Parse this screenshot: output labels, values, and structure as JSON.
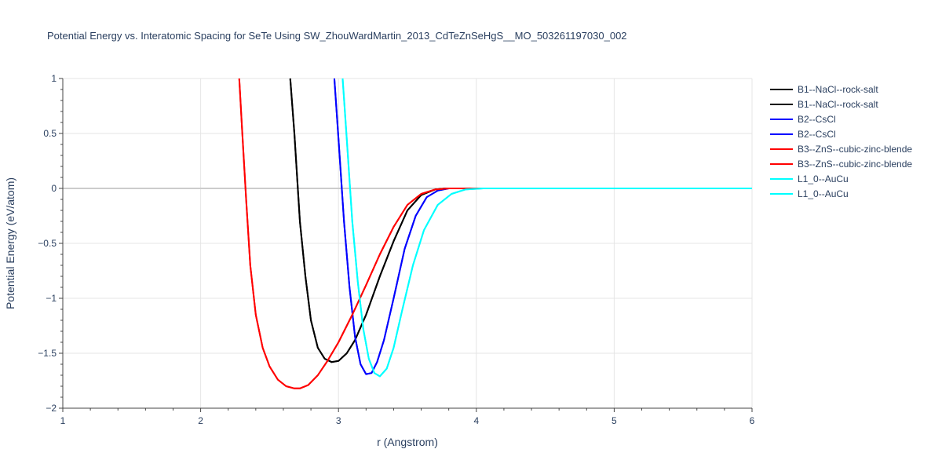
{
  "chart_data": {
    "type": "line",
    "title": "Potential Energy vs. Interatomic Spacing for SeTe Using SW_ZhouWardMartin_2013_CdTeZnSeHgS__MO_503261197030_002",
    "xlabel": "r (Angstrom)",
    "ylabel": "Potential Energy (eV/atom)",
    "xlim": [
      1,
      6
    ],
    "ylim": [
      -2,
      1
    ],
    "xticks": [
      1,
      2,
      3,
      4,
      5,
      6
    ],
    "xtick_labels": [
      "1",
      "2",
      "3",
      "4",
      "5",
      "6"
    ],
    "yticks": [
      1,
      0.5,
      0,
      -0.5,
      -1,
      -1.5,
      -2
    ],
    "ytick_labels": [
      "1",
      "0.5",
      "0",
      "−0.5",
      "−1",
      "−1.5",
      "−2"
    ],
    "grid": true,
    "legend_position": "top-right",
    "series": [
      {
        "name": "B1--NaCl--rock-salt",
        "color": "#000000",
        "x": [
          2.65,
          2.68,
          2.72,
          2.76,
          2.8,
          2.85,
          2.9,
          2.95,
          3.0,
          3.06,
          3.12,
          3.2,
          3.3,
          3.4,
          3.5,
          3.6,
          3.7,
          3.78,
          3.85,
          4.0,
          6.0
        ],
        "y": [
          1.0,
          0.5,
          -0.3,
          -0.8,
          -1.2,
          -1.45,
          -1.55,
          -1.58,
          -1.57,
          -1.5,
          -1.38,
          -1.15,
          -0.8,
          -0.48,
          -0.2,
          -0.06,
          -0.01,
          0.0,
          0.0,
          0.0,
          0.0
        ]
      },
      {
        "name": "B1--NaCl--rock-salt",
        "color": "#000000",
        "x": [
          2.65,
          2.68,
          2.72,
          2.76,
          2.8,
          2.85,
          2.9,
          2.95,
          3.0,
          3.06,
          3.12,
          3.2,
          3.3,
          3.4,
          3.5,
          3.6,
          3.7,
          3.78,
          3.85,
          4.0,
          6.0
        ],
        "y": [
          1.0,
          0.5,
          -0.3,
          -0.8,
          -1.2,
          -1.45,
          -1.55,
          -1.58,
          -1.57,
          -1.5,
          -1.38,
          -1.15,
          -0.8,
          -0.48,
          -0.2,
          -0.06,
          -0.01,
          0.0,
          0.0,
          0.0,
          0.0
        ]
      },
      {
        "name": "B2--CsCl",
        "color": "#0000ff",
        "x": [
          2.97,
          3.0,
          3.04,
          3.08,
          3.12,
          3.16,
          3.2,
          3.24,
          3.28,
          3.33,
          3.4,
          3.48,
          3.56,
          3.64,
          3.72,
          3.8,
          3.9,
          4.0,
          6.0
        ],
        "y": [
          1.0,
          0.45,
          -0.3,
          -0.9,
          -1.35,
          -1.6,
          -1.69,
          -1.68,
          -1.58,
          -1.38,
          -1.0,
          -0.55,
          -0.25,
          -0.08,
          -0.02,
          0.0,
          0.0,
          0.0,
          0.0
        ]
      },
      {
        "name": "B2--CsCl",
        "color": "#0000ff",
        "x": [
          2.97,
          3.0,
          3.04,
          3.08,
          3.12,
          3.16,
          3.2,
          3.24,
          3.28,
          3.33,
          3.4,
          3.48,
          3.56,
          3.64,
          3.72,
          3.8,
          3.9,
          4.0,
          6.0
        ],
        "y": [
          1.0,
          0.45,
          -0.3,
          -0.9,
          -1.35,
          -1.6,
          -1.69,
          -1.68,
          -1.58,
          -1.38,
          -1.0,
          -0.55,
          -0.25,
          -0.08,
          -0.02,
          0.0,
          0.0,
          0.0,
          0.0
        ]
      },
      {
        "name": "B3--ZnS--cubic-zinc-blende",
        "color": "#ff0000",
        "x": [
          2.28,
          2.3,
          2.33,
          2.36,
          2.4,
          2.45,
          2.5,
          2.56,
          2.62,
          2.68,
          2.72,
          2.78,
          2.85,
          2.92,
          3.0,
          3.1,
          3.2,
          3.3,
          3.4,
          3.5,
          3.6,
          3.7,
          3.8,
          3.9,
          6.0
        ],
        "y": [
          1.0,
          0.55,
          -0.1,
          -0.7,
          -1.15,
          -1.45,
          -1.62,
          -1.74,
          -1.8,
          -1.82,
          -1.82,
          -1.79,
          -1.7,
          -1.57,
          -1.4,
          -1.15,
          -0.88,
          -0.6,
          -0.35,
          -0.15,
          -0.05,
          -0.01,
          0.0,
          0.0,
          0.0
        ]
      },
      {
        "name": "B3--ZnS--cubic-zinc-blende",
        "color": "#ff0000",
        "x": [
          2.28,
          2.3,
          2.33,
          2.36,
          2.4,
          2.45,
          2.5,
          2.56,
          2.62,
          2.68,
          2.72,
          2.78,
          2.85,
          2.92,
          3.0,
          3.1,
          3.2,
          3.3,
          3.4,
          3.5,
          3.6,
          3.7,
          3.8,
          3.9,
          6.0
        ],
        "y": [
          1.0,
          0.55,
          -0.1,
          -0.7,
          -1.15,
          -1.45,
          -1.62,
          -1.74,
          -1.8,
          -1.82,
          -1.82,
          -1.79,
          -1.7,
          -1.57,
          -1.4,
          -1.15,
          -0.88,
          -0.6,
          -0.35,
          -0.15,
          -0.05,
          -0.01,
          0.0,
          0.0,
          0.0
        ]
      },
      {
        "name": "L1_0--AuCu",
        "color": "#00ffff",
        "x": [
          3.03,
          3.06,
          3.1,
          3.14,
          3.18,
          3.22,
          3.26,
          3.3,
          3.35,
          3.4,
          3.46,
          3.54,
          3.62,
          3.72,
          3.82,
          3.92,
          4.05,
          4.2,
          6.0
        ],
        "y": [
          1.0,
          0.45,
          -0.3,
          -0.85,
          -1.28,
          -1.55,
          -1.68,
          -1.71,
          -1.64,
          -1.45,
          -1.12,
          -0.7,
          -0.38,
          -0.15,
          -0.05,
          -0.01,
          0.0,
          0.0,
          0.0
        ]
      },
      {
        "name": "L1_0--AuCu",
        "color": "#00ffff",
        "x": [
          3.03,
          3.06,
          3.1,
          3.14,
          3.18,
          3.22,
          3.26,
          3.3,
          3.35,
          3.4,
          3.46,
          3.54,
          3.62,
          3.72,
          3.82,
          3.92,
          4.05,
          4.2,
          6.0
        ],
        "y": [
          1.0,
          0.45,
          -0.3,
          -0.85,
          -1.28,
          -1.55,
          -1.68,
          -1.71,
          -1.64,
          -1.45,
          -1.12,
          -0.7,
          -0.38,
          -0.15,
          -0.05,
          -0.01,
          0.0,
          0.0,
          0.0
        ]
      }
    ]
  }
}
